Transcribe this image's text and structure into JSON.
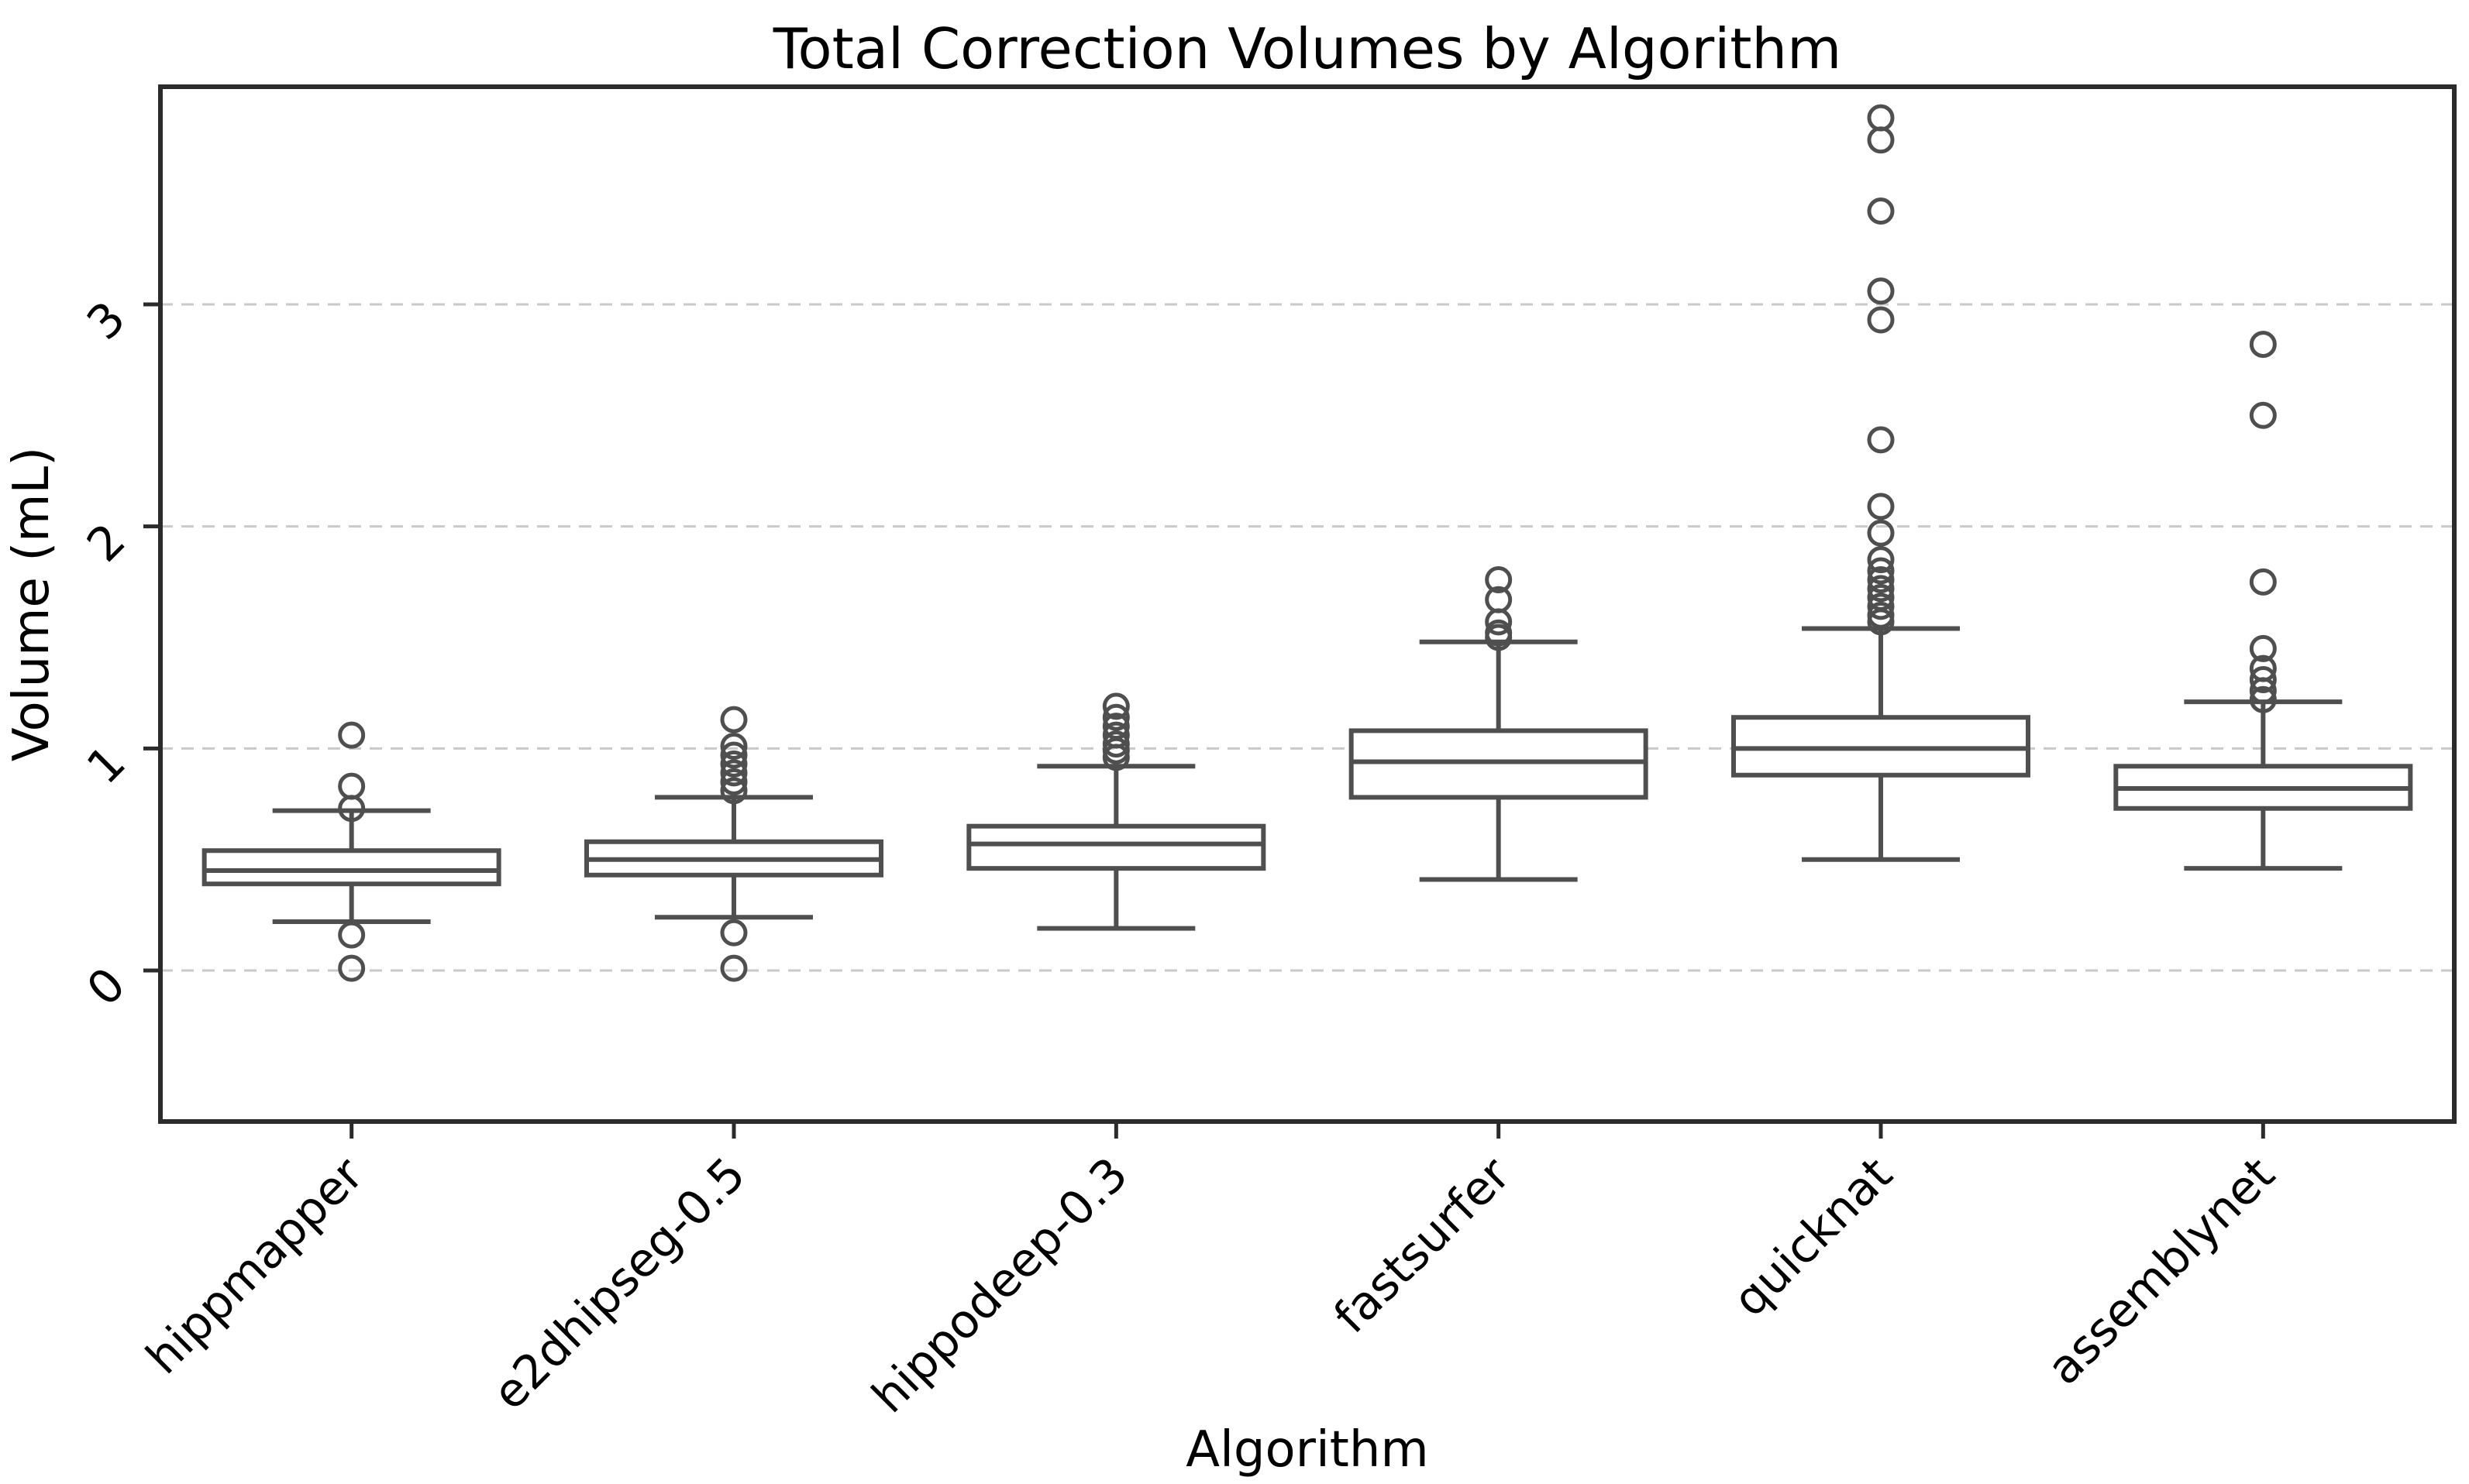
{
  "chart_data": {
    "type": "boxplot",
    "title": "Total Correction Volumes by Algorithm",
    "xlabel": "Algorithm",
    "ylabel": "Volume (mL)",
    "categories": [
      "hippmapper",
      "e2dhipseg-0.5",
      "hippodeep-0.3",
      "fastsurfer",
      "quicknat",
      "assemblynet"
    ],
    "yticks": [
      0,
      1,
      2,
      3
    ],
    "ylim": [
      -0.68,
      3.98
    ],
    "grid": "horizontal-dashed",
    "tick_label_rotation_deg": 45,
    "legend": "none",
    "series": [
      {
        "name": "hippmapper",
        "whislo": 0.22,
        "q1": 0.39,
        "med": 0.45,
        "q3": 0.54,
        "whishi": 0.72,
        "fliers": [
          1.06,
          0.83,
          0.73,
          0.16,
          0.01
        ]
      },
      {
        "name": "e2dhipseg-0.5",
        "whislo": 0.24,
        "q1": 0.43,
        "med": 0.5,
        "q3": 0.58,
        "whishi": 0.78,
        "fliers": [
          1.13,
          1.01,
          0.97,
          0.93,
          0.89,
          0.85,
          0.81,
          0.17,
          0.01
        ]
      },
      {
        "name": "hippodeep-0.3",
        "whislo": 0.19,
        "q1": 0.46,
        "med": 0.57,
        "q3": 0.65,
        "whishi": 0.92,
        "fliers": [
          1.19,
          1.14,
          1.1,
          1.06,
          1.02,
          0.99,
          0.96
        ]
      },
      {
        "name": "fastsurfer",
        "whislo": 0.41,
        "q1": 0.78,
        "med": 0.94,
        "q3": 1.08,
        "whishi": 1.48,
        "fliers": [
          1.76,
          1.67,
          1.57,
          1.52,
          1.5
        ]
      },
      {
        "name": "quicknat",
        "whislo": 0.5,
        "q1": 0.88,
        "med": 1.0,
        "q3": 1.14,
        "whishi": 1.54,
        "fliers": [
          3.84,
          3.74,
          3.42,
          3.06,
          2.93,
          2.39,
          2.09,
          1.97,
          1.85,
          1.8,
          1.76,
          1.72,
          1.68,
          1.64,
          1.6,
          1.57
        ]
      },
      {
        "name": "assemblynet",
        "whislo": 0.46,
        "q1": 0.73,
        "med": 0.82,
        "q3": 0.92,
        "whishi": 1.21,
        "fliers": [
          2.82,
          2.5,
          1.75,
          1.45,
          1.36,
          1.31,
          1.26,
          1.22
        ]
      }
    ],
    "colors": {
      "box_line": "#4f4f4f",
      "frame": "#2b2b2b",
      "grid": "#c9c9c9",
      "text": "#000000",
      "background": "#ffffff"
    }
  }
}
